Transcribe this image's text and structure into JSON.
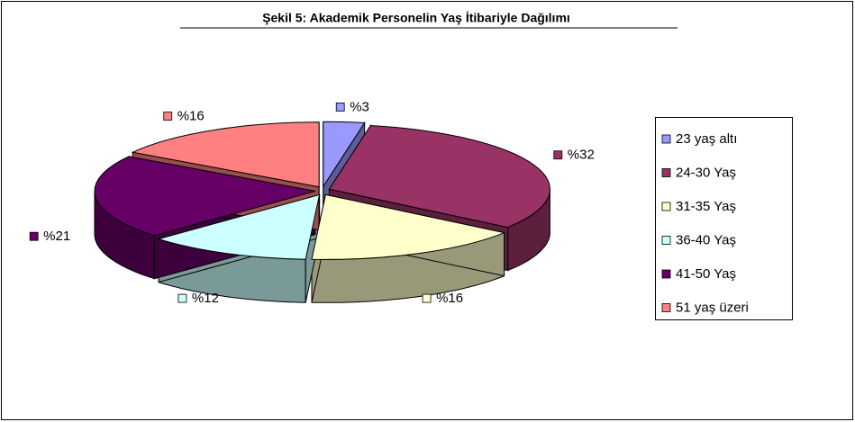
{
  "chart_data": {
    "type": "pie3d",
    "title": "Şekil 5: Akademik Personelin Yaş İtibariyle Dağılımı",
    "categories": [
      "23 yaş altı",
      "24-30 Yaş",
      "31-35 Yaş",
      "36-40 Yaş",
      "41-50 Yaş",
      "51 yaş üzeri"
    ],
    "values": [
      3,
      32,
      16,
      12,
      21,
      16
    ],
    "value_labels": [
      "%3",
      "%32",
      "%16",
      "%12",
      "%21",
      "%16"
    ],
    "colors": [
      "#9999ff",
      "#993366",
      "#ffffcc",
      "#ccffff",
      "#660066",
      "#ff8080"
    ],
    "legend": "right"
  }
}
